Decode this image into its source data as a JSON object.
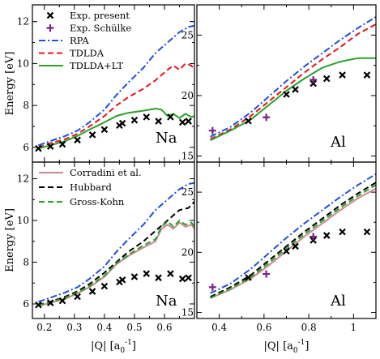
{
  "chart_data": [
    {
      "type": "line",
      "panel": "top-left",
      "panel_label": "Na",
      "ylabel": "Energy [eV]",
      "xlim": [
        0.16,
        0.7
      ],
      "ylim": [
        5.3,
        12.8
      ],
      "x_ticks": [
        0.2,
        0.3,
        0.4,
        0.5,
        0.6
      ],
      "y_ticks": [
        6,
        8,
        10,
        12
      ],
      "legend": {
        "placement": "top-left",
        "entries": [
          "Exp. present",
          "Exp. Schülke",
          "RPA",
          "TDLDA",
          "TDLDA+LT"
        ]
      },
      "series": [
        {
          "name": "RPA",
          "style": "dashdot",
          "color": "#1f4fe0",
          "x": [
            0.18,
            0.22,
            0.27,
            0.31,
            0.35,
            0.4,
            0.44,
            0.48,
            0.53,
            0.57,
            0.61,
            0.65,
            0.68,
            0.7
          ],
          "y": [
            6.1,
            6.3,
            6.55,
            6.8,
            7.2,
            7.8,
            8.5,
            9.1,
            9.8,
            10.5,
            11.0,
            11.5,
            11.75,
            11.8
          ]
        },
        {
          "name": "TDLDA",
          "style": "dashed",
          "color": "#e8141b",
          "x": [
            0.18,
            0.22,
            0.27,
            0.31,
            0.35,
            0.4,
            0.44,
            0.48,
            0.53,
            0.57,
            0.61,
            0.63,
            0.65,
            0.67,
            0.69,
            0.7
          ],
          "y": [
            6.0,
            6.2,
            6.4,
            6.65,
            7.0,
            7.5,
            8.0,
            8.4,
            8.8,
            9.2,
            9.7,
            9.9,
            9.7,
            10.0,
            9.9,
            9.7
          ]
        },
        {
          "name": "TDLDA+LT",
          "style": "solid",
          "color": "#2ca02c",
          "x": [
            0.18,
            0.22,
            0.27,
            0.31,
            0.35,
            0.4,
            0.44,
            0.48,
            0.53,
            0.57,
            0.59,
            0.61,
            0.63,
            0.65,
            0.67,
            0.69,
            0.7
          ],
          "y": [
            5.95,
            6.1,
            6.3,
            6.55,
            6.85,
            7.2,
            7.5,
            7.65,
            7.75,
            7.85,
            7.8,
            7.5,
            7.6,
            7.4,
            7.6,
            7.45,
            7.5
          ]
        }
      ],
      "markers": [
        {
          "name": "Exp. present",
          "symbol": "x",
          "color": "#000000",
          "x": [
            0.18,
            0.22,
            0.26,
            0.31,
            0.36,
            0.4,
            0.45,
            0.46,
            0.5,
            0.54,
            0.58,
            0.62,
            0.66,
            0.68
          ],
          "y": [
            5.95,
            6.05,
            6.15,
            6.35,
            6.6,
            6.85,
            7.05,
            7.15,
            7.3,
            7.45,
            7.25,
            7.45,
            7.2,
            7.25
          ]
        }
      ]
    },
    {
      "type": "line",
      "panel": "top-right",
      "panel_label": "Al",
      "xlim": [
        0.3,
        1.1
      ],
      "ylim": [
        14.5,
        27.5
      ],
      "x_ticks": [
        0.4,
        0.6,
        0.8,
        1.0
      ],
      "y_ticks": [
        15,
        20,
        25
      ],
      "series": [
        {
          "name": "RPA",
          "style": "dashdot",
          "color": "#1f4fe0",
          "x": [
            0.36,
            0.45,
            0.54,
            0.62,
            0.7,
            0.78,
            0.86,
            0.94,
            1.02,
            1.1
          ],
          "y": [
            16.6,
            17.4,
            18.6,
            19.9,
            21.2,
            22.4,
            23.5,
            24.6,
            25.6,
            26.5
          ]
        },
        {
          "name": "TDLDA",
          "style": "dashed",
          "color": "#e8141b",
          "x": [
            0.36,
            0.45,
            0.54,
            0.62,
            0.7,
            0.78,
            0.86,
            0.94,
            1.02,
            1.1
          ],
          "y": [
            16.4,
            17.2,
            18.3,
            19.5,
            20.7,
            21.9,
            23.0,
            24.0,
            25.1,
            25.9
          ]
        },
        {
          "name": "TDLDA+LT",
          "style": "solid",
          "color": "#2ca02c",
          "x": [
            0.36,
            0.45,
            0.54,
            0.62,
            0.7,
            0.78,
            0.86,
            0.94,
            1.02,
            1.1
          ],
          "y": [
            16.3,
            17.1,
            18.0,
            19.2,
            20.4,
            21.4,
            22.3,
            22.8,
            23.1,
            23.1
          ]
        }
      ],
      "markers": [
        {
          "name": "Exp. present",
          "symbol": "x",
          "color": "#000000",
          "x": [
            0.53,
            0.7,
            0.74,
            0.82,
            0.88,
            0.95,
            1.06
          ],
          "y": [
            17.9,
            20.1,
            20.5,
            21.0,
            21.4,
            21.7,
            21.7
          ]
        },
        {
          "name": "Exp. Schülke",
          "symbol": "plus",
          "color": "#7a1f8a",
          "x": [
            0.37,
            0.61,
            0.82
          ],
          "y": [
            17.1,
            18.2,
            21.3
          ]
        }
      ]
    },
    {
      "type": "line",
      "panel": "bottom-left",
      "panel_label": "Na",
      "xlabel": "|Q| [a",
      "xlabel_sub": "0",
      "xlabel_sup": "-1",
      "xlabel_end": "]",
      "ylabel": "Energy [eV]",
      "xlim": [
        0.16,
        0.7
      ],
      "ylim": [
        5.3,
        12.8
      ],
      "x_ticks": [
        0.2,
        0.3,
        0.4,
        0.5,
        0.6
      ],
      "x_tick_labels": [
        "0.2",
        "0.3",
        "0.4",
        "0.5",
        "0.6"
      ],
      "y_ticks": [
        6,
        8,
        10,
        12
      ],
      "legend": {
        "placement": "top-left",
        "entries": [
          "Corradini et al.",
          "Hubbard",
          "Gross-Kohn"
        ]
      },
      "series": [
        {
          "name": "RPA",
          "style": "dashdot",
          "color": "#1f4fe0",
          "x": [
            0.18,
            0.22,
            0.27,
            0.31,
            0.35,
            0.4,
            0.44,
            0.48,
            0.53,
            0.57,
            0.61,
            0.65,
            0.68,
            0.7
          ],
          "y": [
            6.1,
            6.3,
            6.55,
            6.8,
            7.2,
            7.8,
            8.5,
            9.1,
            9.8,
            10.5,
            11.0,
            11.5,
            11.75,
            11.8
          ]
        },
        {
          "name": "Corradini et al.",
          "style": "solid",
          "color": "#c98a8f",
          "x": [
            0.18,
            0.22,
            0.27,
            0.31,
            0.35,
            0.4,
            0.44,
            0.48,
            0.53,
            0.57,
            0.59,
            0.61,
            0.63,
            0.65,
            0.67,
            0.69,
            0.7
          ],
          "y": [
            5.9,
            6.05,
            6.25,
            6.5,
            6.8,
            7.3,
            7.9,
            8.3,
            8.7,
            9.0,
            9.6,
            9.8,
            9.6,
            9.9,
            9.7,
            9.8,
            9.6
          ]
        },
        {
          "name": "Hubbard",
          "style": "dashed",
          "color": "#000000",
          "x": [
            0.18,
            0.22,
            0.27,
            0.31,
            0.35,
            0.4,
            0.44,
            0.48,
            0.53,
            0.57,
            0.61,
            0.65,
            0.68,
            0.7
          ],
          "y": [
            5.95,
            6.1,
            6.35,
            6.6,
            6.95,
            7.5,
            8.0,
            8.5,
            9.0,
            9.5,
            10.0,
            10.5,
            10.6,
            10.9
          ]
        },
        {
          "name": "Gross-Kohn",
          "style": "dashed",
          "color": "#2ca02c",
          "x": [
            0.18,
            0.22,
            0.27,
            0.31,
            0.35,
            0.4,
            0.44,
            0.48,
            0.53,
            0.57,
            0.59,
            0.61,
            0.63,
            0.65,
            0.67,
            0.69,
            0.7
          ],
          "y": [
            5.92,
            6.08,
            6.3,
            6.55,
            6.85,
            7.35,
            7.95,
            8.35,
            8.8,
            9.1,
            9.7,
            9.95,
            9.7,
            10.0,
            9.8,
            9.9,
            9.7
          ]
        }
      ],
      "markers": [
        {
          "name": "Exp. present",
          "symbol": "x",
          "color": "#000000",
          "x": [
            0.18,
            0.22,
            0.26,
            0.31,
            0.36,
            0.4,
            0.45,
            0.46,
            0.5,
            0.54,
            0.58,
            0.62,
            0.66,
            0.68
          ],
          "y": [
            5.95,
            6.05,
            6.15,
            6.35,
            6.6,
            6.85,
            7.05,
            7.15,
            7.3,
            7.45,
            7.25,
            7.45,
            7.2,
            7.25
          ]
        }
      ]
    },
    {
      "type": "line",
      "panel": "bottom-right",
      "panel_label": "Al",
      "xlabel": "|Q| [a",
      "xlabel_sub": "0",
      "xlabel_sup": "-1",
      "xlabel_end": "]",
      "xlim": [
        0.3,
        1.1
      ],
      "ylim": [
        14.5,
        27.5
      ],
      "x_ticks": [
        0.4,
        0.6,
        0.8,
        1.0
      ],
      "x_tick_labels": [
        "0.4",
        "0.6",
        "0.8",
        "1"
      ],
      "y_ticks": [
        15,
        20,
        25
      ],
      "series": [
        {
          "name": "RPA",
          "style": "dashdot",
          "color": "#1f4fe0",
          "x": [
            0.36,
            0.45,
            0.54,
            0.62,
            0.7,
            0.78,
            0.86,
            0.94,
            1.02,
            1.1
          ],
          "y": [
            16.6,
            17.4,
            18.6,
            19.9,
            21.2,
            22.4,
            23.5,
            24.6,
            25.6,
            26.5
          ]
        },
        {
          "name": "Corradini et al.",
          "style": "solid",
          "color": "#c98a8f",
          "x": [
            0.36,
            0.45,
            0.54,
            0.62,
            0.7,
            0.78,
            0.86,
            0.94,
            1.02,
            1.1
          ],
          "y": [
            16.2,
            16.9,
            17.8,
            18.9,
            20.1,
            21.3,
            22.4,
            23.5,
            24.5,
            25.3
          ]
        },
        {
          "name": "Hubbard",
          "style": "dashed",
          "color": "#000000",
          "x": [
            0.36,
            0.45,
            0.54,
            0.62,
            0.7,
            0.78,
            0.86,
            0.94,
            1.02,
            1.1
          ],
          "y": [
            16.3,
            17.1,
            18.1,
            19.3,
            20.5,
            21.7,
            22.8,
            23.9,
            24.9,
            25.8
          ]
        },
        {
          "name": "Gross-Kohn",
          "style": "dashed",
          "color": "#2ca02c",
          "x": [
            0.36,
            0.45,
            0.54,
            0.62,
            0.7,
            0.78,
            0.86,
            0.94,
            1.02,
            1.1
          ],
          "y": [
            16.2,
            17.0,
            17.9,
            19.1,
            20.3,
            21.5,
            22.6,
            23.7,
            24.7,
            25.6
          ]
        }
      ],
      "markers": [
        {
          "name": "Exp. present",
          "symbol": "x",
          "color": "#000000",
          "x": [
            0.53,
            0.7,
            0.74,
            0.82,
            0.88,
            0.95,
            1.06
          ],
          "y": [
            17.9,
            20.1,
            20.5,
            21.0,
            21.4,
            21.7,
            21.7
          ]
        },
        {
          "name": "Exp. Schülke",
          "symbol": "plus",
          "color": "#7a1f8a",
          "x": [
            0.37,
            0.61,
            0.82
          ],
          "y": [
            17.1,
            18.2,
            21.3
          ]
        }
      ]
    }
  ]
}
